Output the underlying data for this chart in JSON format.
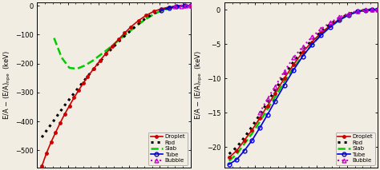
{
  "left_panel": {
    "ylim": [
      -560,
      10
    ],
    "yticks": [
      0,
      -100,
      -200,
      -300,
      -400,
      -500
    ],
    "curves": {
      "droplet": {
        "color": "#cc0000",
        "style": "-",
        "marker": "o",
        "markersize": 2.5,
        "x": [
          0.03,
          0.06,
          0.09,
          0.12,
          0.15,
          0.18,
          0.21,
          0.24,
          0.27,
          0.3,
          0.33,
          0.37,
          0.41,
          0.45,
          0.49,
          0.53,
          0.57,
          0.61,
          0.66,
          0.71,
          0.76,
          0.81,
          0.86,
          0.91,
          0.96,
          1.0
        ],
        "y": [
          -555,
          -510,
          -472,
          -438,
          -405,
          -374,
          -346,
          -318,
          -293,
          -268,
          -245,
          -217,
          -190,
          -164,
          -140,
          -117,
          -95,
          -74,
          -52,
          -34,
          -20,
          -11,
          -5,
          -2,
          -0.5,
          0
        ]
      },
      "rod": {
        "color": "#000000",
        "style": ":",
        "linewidth": 2.2,
        "x": [
          0.03,
          0.07,
          0.11,
          0.15,
          0.19,
          0.23,
          0.27,
          0.31,
          0.36,
          0.41,
          0.46,
          0.51,
          0.56,
          0.61,
          0.66,
          0.71,
          0.76,
          0.81,
          0.86,
          0.91,
          0.96,
          1.0
        ],
        "y": [
          -455,
          -425,
          -396,
          -366,
          -337,
          -310,
          -283,
          -257,
          -224,
          -193,
          -163,
          -136,
          -110,
          -86,
          -63,
          -43,
          -27,
          -16,
          -8,
          -3,
          -0.8,
          0
        ]
      },
      "slab": {
        "color": "#00cc00",
        "style": "--",
        "linewidth": 1.8,
        "x": [
          0.11,
          0.16,
          0.21,
          0.26,
          0.31,
          0.36,
          0.41,
          0.46,
          0.51,
          0.56,
          0.61,
          0.66,
          0.71,
          0.76,
          0.81,
          0.86,
          0.91,
          0.96,
          1.0
        ],
        "y": [
          -112,
          -180,
          -215,
          -218,
          -207,
          -191,
          -171,
          -151,
          -129,
          -107,
          -86,
          -65,
          -46,
          -30,
          -17,
          -9,
          -3.5,
          -1,
          0
        ]
      },
      "tube": {
        "color": "#0000dd",
        "style": "-",
        "marker": "o",
        "markersize": 3.5,
        "markerfacecolor": "none",
        "x": [
          0.81,
          0.86,
          0.91,
          0.96,
          1.0
        ],
        "y": [
          -16,
          -8,
          -3,
          -0.8,
          0
        ]
      },
      "bubble": {
        "color": "#cc00cc",
        "style": ":",
        "marker": "^",
        "markersize": 3.5,
        "markerfacecolor": "none",
        "x": [
          0.9,
          0.94,
          0.97,
          1.0
        ],
        "y": [
          -4,
          -1.5,
          -0.5,
          0
        ]
      }
    }
  },
  "right_panel": {
    "ylim": [
      -23,
      1
    ],
    "yticks": [
      0,
      -5,
      -10,
      -15,
      -20
    ],
    "curves": {
      "droplet": {
        "color": "#cc0000",
        "style": "-",
        "marker": "o",
        "markersize": 2.5,
        "x": [
          0.03,
          0.08,
          0.13,
          0.18,
          0.23,
          0.28,
          0.33,
          0.39,
          0.45,
          0.51,
          0.57,
          0.63,
          0.69,
          0.75,
          0.81,
          0.87,
          0.92,
          0.96,
          1.0
        ],
        "y": [
          -21.5,
          -20.5,
          -19.0,
          -17.5,
          -15.8,
          -14.0,
          -12.2,
          -10.0,
          -8.0,
          -6.2,
          -4.7,
          -3.4,
          -2.3,
          -1.4,
          -0.7,
          -0.25,
          -0.07,
          -0.02,
          0
        ]
      },
      "rod": {
        "color": "#000000",
        "style": ":",
        "linewidth": 2.2,
        "x": [
          0.03,
          0.08,
          0.13,
          0.18,
          0.23,
          0.28,
          0.33,
          0.39,
          0.45,
          0.51,
          0.57,
          0.63,
          0.69,
          0.75,
          0.81,
          0.87,
          0.92,
          0.96,
          1.0
        ],
        "y": [
          -21.0,
          -20.0,
          -18.6,
          -17.0,
          -15.3,
          -13.5,
          -11.7,
          -9.5,
          -7.6,
          -5.9,
          -4.5,
          -3.2,
          -2.1,
          -1.3,
          -0.65,
          -0.22,
          -0.06,
          -0.015,
          0
        ]
      },
      "slab": {
        "color": "#00cc00",
        "style": "--",
        "linewidth": 1.8,
        "x": [
          0.03,
          0.08,
          0.13,
          0.18,
          0.23,
          0.28,
          0.33,
          0.39,
          0.45,
          0.51,
          0.57,
          0.63,
          0.69,
          0.75,
          0.81,
          0.87,
          0.92,
          0.96,
          1.0
        ],
        "y": [
          -22.0,
          -21.0,
          -19.5,
          -18.0,
          -16.3,
          -14.5,
          -12.7,
          -10.5,
          -8.5,
          -6.7,
          -5.1,
          -3.7,
          -2.5,
          -1.5,
          -0.75,
          -0.25,
          -0.07,
          -0.015,
          0
        ]
      },
      "tube": {
        "color": "#0000dd",
        "style": "-",
        "marker": "o",
        "markersize": 3.5,
        "markerfacecolor": "none",
        "x": [
          0.03,
          0.08,
          0.13,
          0.18,
          0.23,
          0.28,
          0.33,
          0.39,
          0.45,
          0.51,
          0.57,
          0.63,
          0.69,
          0.75,
          0.81,
          0.87,
          0.92,
          0.96,
          1.0
        ],
        "y": [
          -22.5,
          -21.8,
          -20.5,
          -19.0,
          -17.2,
          -15.3,
          -13.3,
          -11.0,
          -8.8,
          -6.8,
          -5.1,
          -3.7,
          -2.5,
          -1.5,
          -0.8,
          -0.28,
          -0.08,
          -0.02,
          0
        ]
      },
      "bubble": {
        "color": "#cc00cc",
        "style": ":",
        "marker": "^",
        "markersize": 3.5,
        "markerfacecolor": "none",
        "x": [
          0.23,
          0.28,
          0.33,
          0.39,
          0.45,
          0.51,
          0.57,
          0.63,
          0.69,
          0.75,
          0.81,
          0.87,
          0.92,
          0.96,
          1.0
        ],
        "y": [
          -15.0,
          -13.0,
          -11.2,
          -9.0,
          -7.0,
          -5.4,
          -4.0,
          -2.8,
          -1.9,
          -1.1,
          -0.55,
          -0.18,
          -0.05,
          -0.01,
          0
        ]
      }
    }
  },
  "legend": {
    "droplet_label": "Droplet",
    "rod_label": "Rod",
    "slab_label": "Slab",
    "tube_label": "Tube",
    "bubble_label": "Bubble"
  },
  "background_color": "#f2ede3",
  "tick_label_fontsize": 6,
  "ylabel_fontsize": 6
}
